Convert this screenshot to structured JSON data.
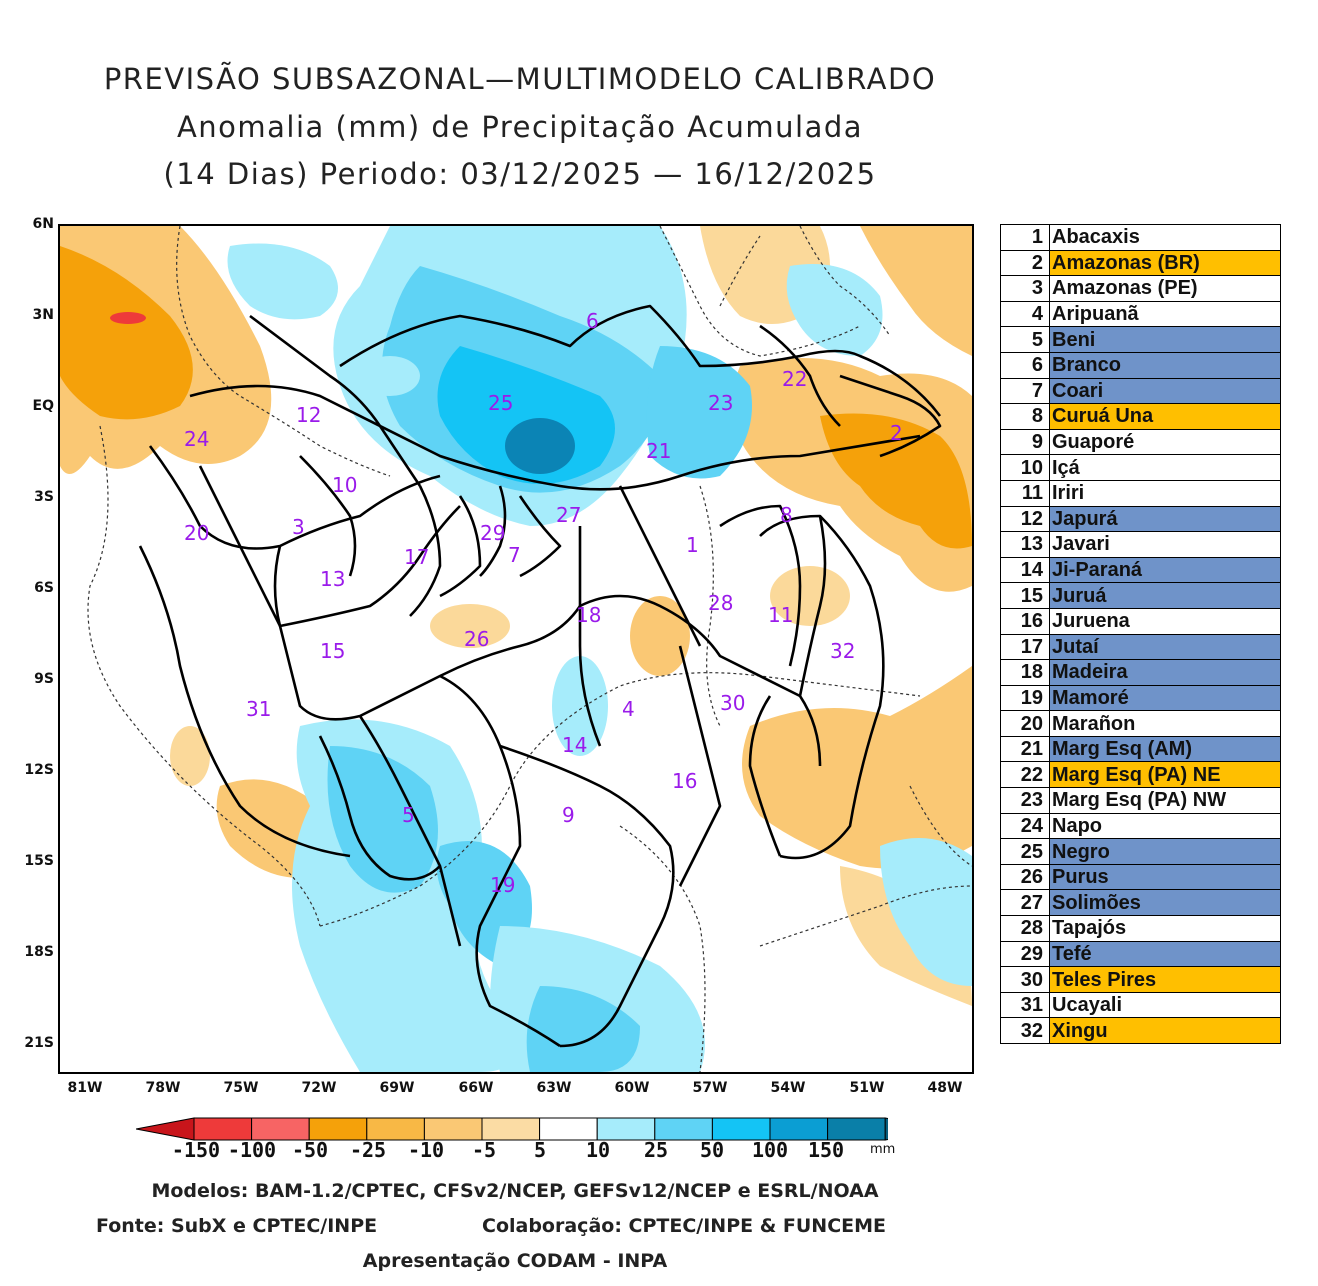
{
  "title": {
    "line1": "PREVISÃO SUBSAZONAL—MULTIMODELO CALIBRADO",
    "line2": "Anomalia (mm) de Precipitação Acumulada",
    "line3": "(14 Dias) Periodo: 03/12/2025 — 16/12/2025"
  },
  "axes": {
    "y_ticks": [
      "6N",
      "3N",
      "EQ",
      "3S",
      "6S",
      "9S",
      "12S",
      "15S",
      "18S",
      "21S"
    ],
    "x_ticks": [
      "81W",
      "78W",
      "75W",
      "72W",
      "69W",
      "66W",
      "63W",
      "60W",
      "57W",
      "54W",
      "51W",
      "48W"
    ]
  },
  "colors": {
    "orange_dark": "#f5a10a",
    "orange": "#f9c05a",
    "orange_light": "#fbd99a",
    "blue_light": "#a6ecfb",
    "blue": "#5fd3f5",
    "blue_mid": "#14b8ee",
    "blue_dark": "#0b84b5",
    "basin_label": "#9a1bea",
    "table_blue": "#6f93c9",
    "table_orange": "#ffbf00"
  },
  "basin_labels": [
    "1",
    "2",
    "3",
    "4",
    "5",
    "6",
    "7",
    "8",
    "9",
    "10",
    "11",
    "12",
    "13",
    "14",
    "15",
    "16",
    "17",
    "18",
    "19",
    "20",
    "21",
    "22",
    "23",
    "24",
    "25",
    "26",
    "27",
    "28",
    "29",
    "30",
    "31",
    "32"
  ],
  "basins": [
    {
      "num": "1",
      "name": "Abacaxis",
      "highlight": "none"
    },
    {
      "num": "2",
      "name": "Amazonas (BR)",
      "highlight": "orange"
    },
    {
      "num": "3",
      "name": "Amazonas (PE)",
      "highlight": "none"
    },
    {
      "num": "4",
      "name": "Aripuanã",
      "highlight": "none"
    },
    {
      "num": "5",
      "name": "Beni",
      "highlight": "blue"
    },
    {
      "num": "6",
      "name": "Branco",
      "highlight": "blue"
    },
    {
      "num": "7",
      "name": "Coari",
      "highlight": "blue"
    },
    {
      "num": "8",
      "name": "Curuá Una",
      "highlight": "orange"
    },
    {
      "num": "9",
      "name": "Guaporé",
      "highlight": "none"
    },
    {
      "num": "10",
      "name": "Içá",
      "highlight": "none"
    },
    {
      "num": "11",
      "name": "Iriri",
      "highlight": "none"
    },
    {
      "num": "12",
      "name": "Japurá",
      "highlight": "blue"
    },
    {
      "num": "13",
      "name": "Javari",
      "highlight": "none"
    },
    {
      "num": "14",
      "name": "Ji-Paraná",
      "highlight": "blue"
    },
    {
      "num": "15",
      "name": "Juruá",
      "highlight": "blue"
    },
    {
      "num": "16",
      "name": "Juruena",
      "highlight": "none"
    },
    {
      "num": "17",
      "name": "Jutaí",
      "highlight": "blue"
    },
    {
      "num": "18",
      "name": "Madeira",
      "highlight": "blue"
    },
    {
      "num": "19",
      "name": "Mamoré",
      "highlight": "blue"
    },
    {
      "num": "20",
      "name": "Marañon",
      "highlight": "none"
    },
    {
      "num": "21",
      "name": "Marg Esq (AM)",
      "highlight": "blue"
    },
    {
      "num": "22",
      "name": "Marg Esq (PA) NE",
      "highlight": "orange"
    },
    {
      "num": "23",
      "name": "Marg Esq (PA) NW",
      "highlight": "none"
    },
    {
      "num": "24",
      "name": "Napo",
      "highlight": "none"
    },
    {
      "num": "25",
      "name": "Negro",
      "highlight": "blue"
    },
    {
      "num": "26",
      "name": "Purus",
      "highlight": "blue"
    },
    {
      "num": "27",
      "name": "Solimões",
      "highlight": "blue"
    },
    {
      "num": "28",
      "name": "Tapajós",
      "highlight": "none"
    },
    {
      "num": "29",
      "name": "Tefé",
      "highlight": "blue"
    },
    {
      "num": "30",
      "name": "Teles Pires",
      "highlight": "orange"
    },
    {
      "num": "31",
      "name": "Ucayali",
      "highlight": "none"
    },
    {
      "num": "32",
      "name": "Xingu",
      "highlight": "orange"
    }
  ],
  "colorbar": {
    "labels": [
      "-150",
      "-100",
      "-50",
      "-25",
      "-10",
      "-5",
      "5",
      "10",
      "25",
      "50",
      "100",
      "150"
    ],
    "unit": "mm",
    "colors": [
      "#c8151b",
      "#ee3a3a",
      "#f76464",
      "#f5a10a",
      "#f8b845",
      "#fac874",
      "#fbdca4",
      "#ffffff",
      "#a6ecfb",
      "#5fd3f5",
      "#14c4f5",
      "#0b9ed3",
      "#0a7fa8",
      "#075d7c"
    ]
  },
  "credits": {
    "models": "Modelos: BAM-1.2/CPTEC, CFSv2/NCEP, GEFSv12/NCEP e ESRL/NOAA",
    "source": "Fonte: SubX e CPTEC/INPE",
    "collab": "Colaboração: CPTEC/INPE & FUNCEME",
    "presentation": "Apresentação CODAM - INPA"
  }
}
